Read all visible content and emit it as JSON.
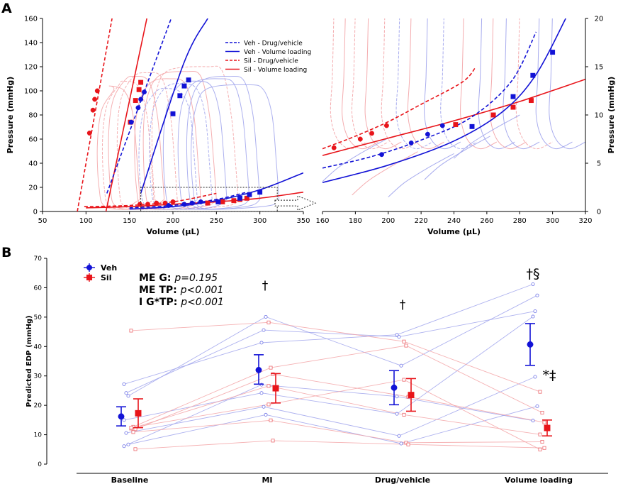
{
  "colors": {
    "veh": "#1212d6",
    "sil": "#e8141a",
    "veh_light": "#9fa3ec",
    "sil_light": "#f3a3a6",
    "axis": "#000000"
  },
  "panel_labels": {
    "a": "A",
    "b": "B"
  },
  "chart_data": [
    {
      "id": "a-left",
      "type": "line",
      "xlabel": "Volume (μL)",
      "ylabel": "Pressure (mmHg)",
      "xlim": [
        50,
        350
      ],
      "ylim": [
        0,
        160
      ],
      "xticks": [
        50,
        100,
        150,
        200,
        250,
        300,
        350
      ],
      "yticks": [
        0,
        20,
        40,
        60,
        80,
        100,
        120,
        140,
        160
      ],
      "legend": {
        "position": "top-right",
        "entries": [
          {
            "label": "Veh - Drug/vehicle",
            "color": "veh",
            "dash": true
          },
          {
            "label": "Veh - Volume loading",
            "color": "veh",
            "dash": false
          },
          {
            "label": "Sil - Drug/vehicle",
            "color": "sil",
            "dash": true
          },
          {
            "label": "Sil - Volume loading",
            "color": "sil",
            "dash": false
          }
        ]
      },
      "esp_lines": [
        {
          "name": "Sil - Drug/vehicle",
          "color": "sil",
          "dash": true,
          "points": [
            [
              90,
              0
            ],
            [
              130,
              160
            ]
          ]
        },
        {
          "name": "Sil - Volume loading",
          "color": "sil",
          "dash": false,
          "points": [
            [
              123,
              0
            ],
            [
              170,
              160
            ]
          ]
        },
        {
          "name": "Veh - Drug/vehicle",
          "color": "veh",
          "dash": true,
          "points": [
            [
              124,
              15
            ],
            [
              198,
              160
            ]
          ]
        },
        {
          "name": "Veh - Volume loading",
          "color": "veh",
          "dash": false,
          "points": [
            [
              163,
              15
            ],
            [
              212,
              122
            ],
            [
              240,
              160
            ]
          ]
        }
      ],
      "ed_lines": [
        {
          "name": "Sil - Drug/vehicle",
          "color": "sil",
          "dash": true,
          "points": [
            [
              98,
              4
            ],
            [
              150,
              5
            ],
            [
              200,
              8
            ],
            [
              250,
              15
            ]
          ]
        },
        {
          "name": "Sil - Volume loading",
          "color": "sil",
          "dash": false,
          "points": [
            [
              100,
              3
            ],
            [
              150,
              4
            ],
            [
              200,
              6
            ],
            [
              250,
              8
            ],
            [
              300,
              11
            ],
            [
              350,
              16
            ]
          ]
        },
        {
          "name": "Veh - Drug/vehicle",
          "color": "veh",
          "dash": true,
          "points": [
            [
              150,
              3
            ],
            [
              200,
              5
            ],
            [
              250,
              10
            ],
            [
              285,
              16
            ]
          ]
        },
        {
          "name": "Veh - Volume loading",
          "color": "veh",
          "dash": false,
          "points": [
            [
              150,
              2
            ],
            [
              200,
              4
            ],
            [
              250,
              9
            ],
            [
              300,
              18
            ],
            [
              350,
              32
            ]
          ]
        }
      ],
      "esp_points": [
        {
          "series": "Sil - Drug/vehicle",
          "marker": "circle",
          "color": "sil",
          "x": [
            104,
            108,
            110,
            113
          ],
          "y": [
            65,
            84,
            93,
            100
          ]
        },
        {
          "series": "Sil - Volume loading",
          "marker": "square",
          "color": "sil",
          "x": [
            151,
            157,
            161,
            163
          ],
          "y": [
            74,
            92,
            101,
            107
          ]
        },
        {
          "series": "Veh - Drug/vehicle",
          "marker": "circle",
          "color": "veh",
          "x": [
            152,
            160,
            163,
            167
          ],
          "y": [
            74,
            86,
            93,
            99
          ]
        },
        {
          "series": "Veh - Volume loading",
          "marker": "square",
          "color": "veh",
          "x": [
            200,
            208,
            213,
            218
          ],
          "y": [
            81,
            96,
            104,
            109
          ]
        }
      ],
      "edp_points": [
        {
          "series": "Sil",
          "marker": "circle",
          "color": "sil",
          "x": [
            162,
            171,
            181,
            191,
            200
          ],
          "y": [
            6,
            6,
            7,
            7,
            8
          ]
        },
        {
          "series": "Sil",
          "marker": "square",
          "color": "sil",
          "x": [
            240,
            257,
            270,
            277,
            285
          ],
          "y": [
            7,
            8,
            9,
            10,
            11
          ]
        },
        {
          "series": "Veh",
          "marker": "circle",
          "color": "veh",
          "x": [
            195,
            213,
            222,
            232
          ],
          "y": [
            5,
            6,
            7,
            8
          ]
        },
        {
          "series": "Veh",
          "marker": "square",
          "color": "veh",
          "x": [
            252,
            277,
            288,
            300
          ],
          "y": [
            8,
            11,
            14,
            16
          ]
        }
      ],
      "annotations": [
        "zoom box: x 163-320, y 0-20"
      ]
    },
    {
      "id": "a-right",
      "type": "line",
      "xlabel": "Volume (μL)",
      "ylabel": "Pressure (mmHg)",
      "xlim": [
        160,
        320
      ],
      "ylim": [
        0,
        20
      ],
      "xticks": [
        160,
        180,
        200,
        220,
        240,
        260,
        280,
        300,
        320
      ],
      "yticks": [
        0,
        5,
        10,
        15,
        20
      ],
      "ed_lines": [
        {
          "name": "Sil - Drug/vehicle",
          "color": "sil",
          "dash": true,
          "points": [
            [
              160,
              6.5
            ],
            [
              180,
              7.8
            ],
            [
              200,
              9.3
            ],
            [
              220,
              11.1
            ],
            [
              245,
              13.4
            ],
            [
              253,
              14.9
            ]
          ]
        },
        {
          "name": "Sil - Volume loading",
          "color": "sil",
          "dash": false,
          "points": [
            [
              160,
              5.8
            ],
            [
              200,
              7.6
            ],
            [
              240,
              9.4
            ],
            [
              280,
              11.4
            ],
            [
              320,
              13.7
            ]
          ]
        },
        {
          "name": "Veh - Drug/vehicle",
          "color": "veh",
          "dash": true,
          "points": [
            [
              160,
              4.5
            ],
            [
              190,
              5.7
            ],
            [
              220,
              7.4
            ],
            [
              250,
              9.7
            ],
            [
              275,
              13.5
            ],
            [
              290,
              18.6
            ]
          ]
        },
        {
          "name": "Veh - Volume loading",
          "color": "veh",
          "dash": false,
          "points": [
            [
              160,
              3.0
            ],
            [
              200,
              4.8
            ],
            [
              240,
              7.3
            ],
            [
              270,
              10.4
            ],
            [
              290,
              14.2
            ],
            [
              308,
              20.0
            ]
          ]
        }
      ],
      "points": [
        {
          "series": "Sil - Drug/vehicle",
          "marker": "circle",
          "color": "sil",
          "x": [
            167,
            183,
            190,
            199
          ],
          "y": [
            6.6,
            7.5,
            8.1,
            8.9
          ]
        },
        {
          "series": "Sil - Volume loading",
          "marker": "square",
          "color": "sil",
          "x": [
            241,
            264,
            276,
            287
          ],
          "y": [
            9.0,
            10.0,
            10.8,
            11.5
          ]
        },
        {
          "series": "Veh - Drug/vehicle",
          "marker": "circle",
          "color": "veh",
          "x": [
            196,
            214,
            224,
            233
          ],
          "y": [
            5.9,
            7.1,
            8.0,
            8.9
          ]
        },
        {
          "series": "Veh - Volume loading",
          "marker": "square",
          "color": "veh",
          "x": [
            251,
            276,
            288,
            300
          ],
          "y": [
            8.8,
            11.9,
            14.1,
            16.5
          ]
        }
      ]
    },
    {
      "id": "b",
      "type": "scatter",
      "ylabel": "Predicted EDP (mmHg)",
      "ylim": [
        0,
        70
      ],
      "yticks": [
        0,
        10,
        20,
        30,
        40,
        50,
        60,
        70
      ],
      "categories": [
        "Baseline",
        "MI",
        "Drug/vehicle",
        "Volume loading"
      ],
      "legend": {
        "position": "top-left",
        "entries": [
          {
            "label": "Veh",
            "color": "veh",
            "marker": "circle"
          },
          {
            "label": "Sil",
            "color": "sil",
            "marker": "square"
          }
        ]
      },
      "stats": [
        {
          "label": "ME G:",
          "value": "p=0.195"
        },
        {
          "label": "ME TP:",
          "value": "p<0.001"
        },
        {
          "label": "I G*TP:",
          "value": "p<0.001"
        }
      ],
      "annotations": [
        {
          "category": "MI",
          "text": "†"
        },
        {
          "category": "Drug/vehicle",
          "text": "†"
        },
        {
          "category": "Volume loading",
          "text": "†§"
        },
        {
          "category": "Volume loading",
          "text": "*‡"
        }
      ],
      "series": [
        {
          "name": "Veh",
          "marker": "circle",
          "means": [
            16.2,
            32.0,
            26.0,
            40.7
          ],
          "ci_lower": [
            13.0,
            27.2,
            20.2,
            33.6
          ],
          "ci_upper": [
            19.5,
            37.2,
            31.8,
            47.8
          ]
        },
        {
          "name": "Sil",
          "marker": "square",
          "means": [
            17.3,
            25.8,
            23.5,
            12.3
          ],
          "ci_lower": [
            12.4,
            20.8,
            18.0,
            9.6
          ],
          "ci_upper": [
            22.2,
            30.8,
            29.1,
            15.0
          ]
        }
      ],
      "individuals": {
        "Veh": [
          [
            27.2,
            41.3,
            44.0,
            61.2
          ],
          [
            24.2,
            45.6,
            43.3,
            52.0
          ],
          [
            23.2,
            50.1,
            33.5,
            57.4
          ],
          [
            15.0,
            24.2,
            17.1,
            50.2
          ],
          [
            10.6,
            19.5,
            9.6,
            29.7
          ],
          [
            6.7,
            16.8,
            7.0,
            19.7
          ],
          [
            6.1,
            27.0,
            23.0,
            14.8
          ]
        ],
        "Sil": [
          [
            45.4,
            48.2,
            41.7,
            24.6
          ],
          [
            12.7,
            32.8,
            40.3,
            17.5
          ],
          [
            11.9,
            30.6,
            22.9,
            14.2
          ],
          [
            12.1,
            26.6,
            16.8,
            10.1
          ],
          [
            10.9,
            14.9,
            7.3,
            7.6
          ],
          [
            5.1,
            8.0,
            6.7,
            5.5
          ],
          [
            12.4,
            20.3,
            28.7,
            5.0
          ]
        ]
      }
    }
  ]
}
